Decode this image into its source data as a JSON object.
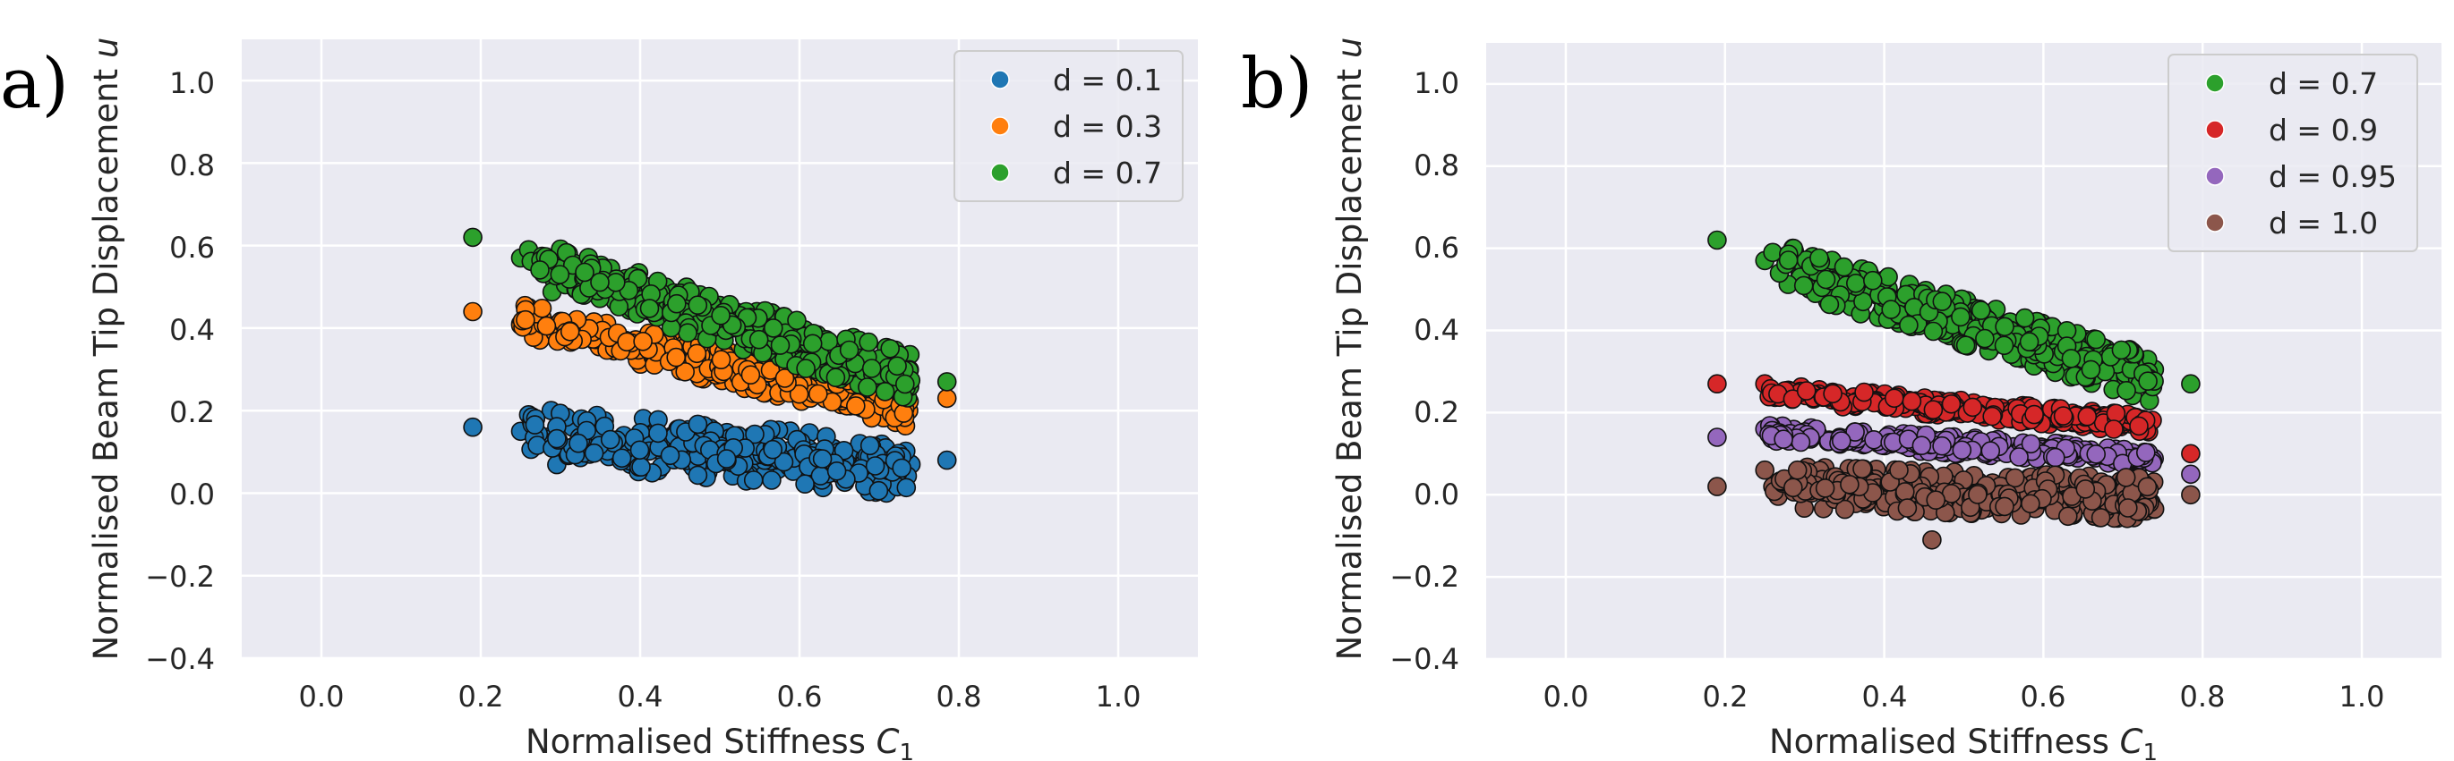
{
  "chart_data": [
    {
      "panel_label": "a)",
      "type": "scatter",
      "xlabel_main": "Normalised Stiffness ",
      "xlabel_sym": "C",
      "xlabel_sub": "1",
      "ylabel_main": "Normalised Beam Tip Displacement ",
      "ylabel_sym": "u",
      "xlim": [
        -0.1,
        1.1
      ],
      "ylim": [
        -0.4,
        1.1
      ],
      "x_ticks": [
        "0.0",
        "0.2",
        "0.4",
        "0.6",
        "0.8",
        "1.0"
      ],
      "y_ticks": [
        "−0.4",
        "−0.2",
        "0.0",
        "0.2",
        "0.4",
        "0.6",
        "0.8",
        "1.0"
      ],
      "grid": true,
      "legend_position": "top-right",
      "series": [
        {
          "name": "d = 0.1",
          "color": "#1f77b4",
          "points": [
            [
              0.19,
              0.16
            ],
            [
              0.785,
              0.08
            ],
            [
              0.25,
              0.15
            ],
            [
              0.26,
              0.19
            ],
            [
              0.74,
              0.07
            ]
          ],
          "band": {
            "x_range": [
              0.26,
              0.74
            ],
            "center_left": 0.14,
            "center_right": 0.06,
            "spread": 0.065,
            "count": 330
          }
        },
        {
          "name": "d = 0.3",
          "color": "#ff7f0e",
          "points": [
            [
              0.19,
              0.44
            ],
            [
              0.785,
              0.23
            ],
            [
              0.25,
              0.41
            ],
            [
              0.26,
              0.45
            ]
          ],
          "band": {
            "x_range": [
              0.25,
              0.74
            ],
            "center_left": 0.42,
            "center_right": 0.2,
            "spread": 0.04,
            "count": 330
          }
        },
        {
          "name": "d = 0.7",
          "color": "#2ca02c",
          "points": [
            [
              0.19,
              0.62
            ],
            [
              0.785,
              0.27
            ],
            [
              0.25,
              0.57
            ],
            [
              0.26,
              0.59
            ],
            [
              0.31,
              0.58
            ]
          ],
          "band": {
            "x_range": [
              0.26,
              0.74
            ],
            "center_left": 0.56,
            "center_right": 0.28,
            "spread": 0.055,
            "count": 360
          }
        }
      ]
    },
    {
      "panel_label": "b)",
      "type": "scatter",
      "xlabel_main": "Normalised Stiffness ",
      "xlabel_sym": "C",
      "xlabel_sub": "1",
      "ylabel_main": "Normalised Beam Tip Displacement ",
      "ylabel_sym": "u",
      "xlim": [
        -0.1,
        1.1
      ],
      "ylim": [
        -0.4,
        1.1
      ],
      "x_ticks": [
        "0.0",
        "0.2",
        "0.4",
        "0.6",
        "0.8",
        "1.0"
      ],
      "y_ticks": [
        "−0.4",
        "−0.2",
        "0.0",
        "0.2",
        "0.4",
        "0.6",
        "0.8",
        "1.0"
      ],
      "grid": true,
      "legend_position": "top-right",
      "series": [
        {
          "name": "d = 0.7",
          "color": "#2ca02c",
          "points": [
            [
              0.19,
              0.62
            ],
            [
              0.785,
              0.27
            ],
            [
              0.25,
              0.57
            ],
            [
              0.26,
              0.59
            ],
            [
              0.31,
              0.58
            ]
          ],
          "band": {
            "x_range": [
              0.26,
              0.74
            ],
            "center_left": 0.56,
            "center_right": 0.28,
            "spread": 0.055,
            "count": 360
          }
        },
        {
          "name": "d = 0.9",
          "color": "#d62728",
          "points": [
            [
              0.19,
              0.27
            ],
            [
              0.785,
              0.1
            ],
            [
              0.25,
              0.27
            ]
          ],
          "band": {
            "x_range": [
              0.25,
              0.74
            ],
            "center_left": 0.25,
            "center_right": 0.17,
            "spread": 0.02,
            "count": 300
          }
        },
        {
          "name": "d = 0.95",
          "color": "#9467bd",
          "points": [
            [
              0.19,
              0.14
            ],
            [
              0.785,
              0.05
            ],
            [
              0.25,
              0.16
            ]
          ],
          "band": {
            "x_range": [
              0.25,
              0.74
            ],
            "center_left": 0.15,
            "center_right": 0.09,
            "spread": 0.02,
            "count": 300
          }
        },
        {
          "name": "d = 1.0",
          "color": "#8c564b",
          "points": [
            [
              0.19,
              0.02
            ],
            [
              0.785,
              0.0
            ],
            [
              0.25,
              0.06
            ],
            [
              0.26,
              0.02
            ],
            [
              0.46,
              -0.11
            ]
          ],
          "band": {
            "x_range": [
              0.26,
              0.74
            ],
            "center_left": 0.02,
            "center_right": -0.01,
            "spread": 0.05,
            "count": 380
          }
        }
      ]
    }
  ]
}
